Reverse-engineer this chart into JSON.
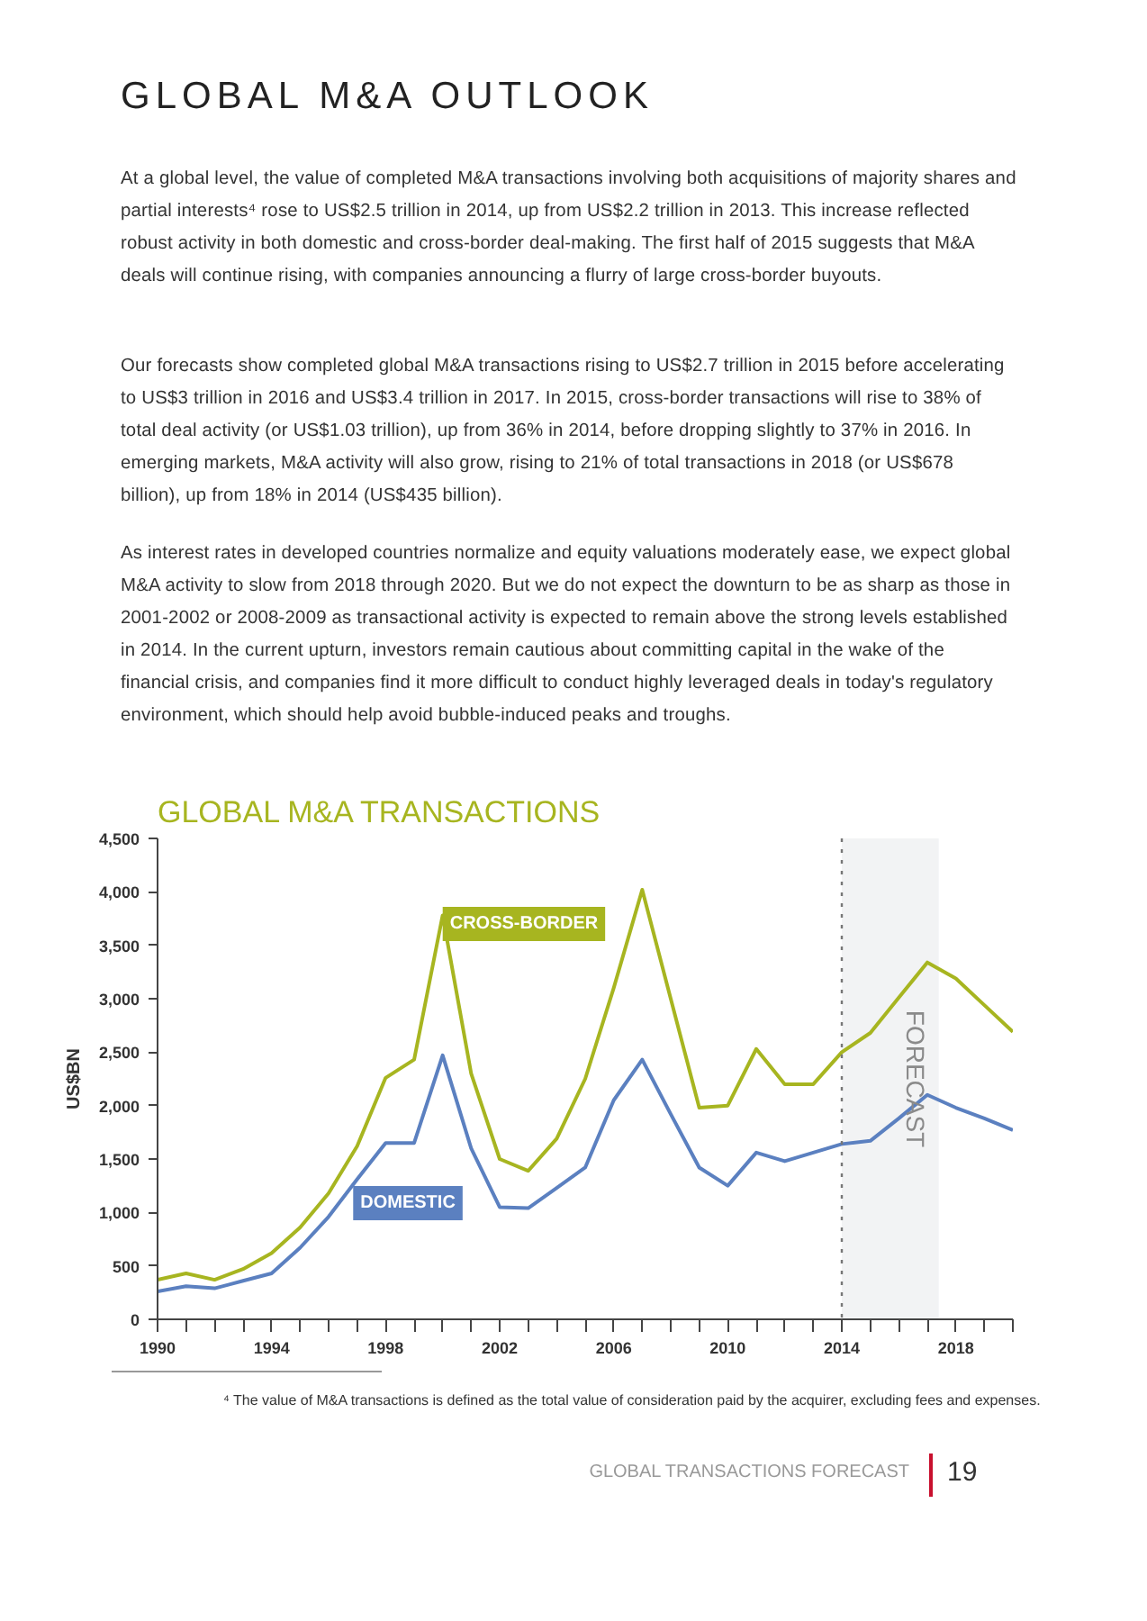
{
  "chart_data": {
    "type": "line",
    "title": "GLOBAL M&A TRANSACTIONS",
    "ylabel": "US$BN",
    "annotations": [
      "GLOBAL M&A OUTLOOK",
      "At a global level, the value of completed M&A transactions involving both acquisitions of majority shares and partial interests⁴ rose to US$2.5 trillion in 2014, up from US$2.2 trillion in 2013. This increase reflected robust activity in both domestic and cross-border deal-making. The first half of 2015 suggests that M&A deals will continue rising, with companies announcing a flurry of large cross-border buyouts.",
      "Our forecasts show completed global M&A transactions rising to US$2.7 trillion in 2015 before accelerating to US$3 trillion in 2016 and US$3.4 trillion in 2017. In 2015, cross-border transactions will rise to 38% of total deal activity (or US$1.03 trillion), up from 36% in 2014, before dropping slightly to 37% in 2016. In emerging markets, M&A activity will also grow, rising to 21% of total transactions in 2018 (or US$678 billion), up from 18% in 2014 (US$435 billion).",
      "As interest rates in developed countries normalize and equity valuations moderately ease, we expect global M&A activity to slow from 2018 through 2020. But we do not expect the downturn to be as sharp as those in 2001-2002 or 2008-2009 as transactional activity is expected to remain above the strong levels established in 2014. In the current upturn, investors remain cautious about committing capital in the wake of the financial crisis, and companies find it more difficult to conduct highly leveraged deals in today's regulatory environment, which should help avoid bubble-induced peaks and troughs.",
      "⁴ The value of M&A transactions is defined as the total value of consideration paid by the acquirer, excluding fees and expenses.",
      "GLOBAL TRANSACTIONS FORECAST",
      "19"
    ],
    "x": [
      1990,
      1991,
      1992,
      1993,
      1994,
      1995,
      1996,
      1997,
      1998,
      1999,
      2000,
      2001,
      2002,
      2003,
      2004,
      2005,
      2006,
      2007,
      2008,
      2009,
      2010,
      2011,
      2012,
      2013,
      2014,
      2015,
      2016,
      2017,
      2018,
      2019,
      2020
    ],
    "series": [
      {
        "name": "CROSS-BORDER",
        "color": "#a7b520",
        "values": [
          370,
          430,
          370,
          470,
          620,
          860,
          1180,
          1620,
          2260,
          2430,
          3780,
          2300,
          1500,
          1390,
          1690,
          2250,
          3100,
          4020,
          3000,
          1980,
          2000,
          2530,
          2200,
          2200,
          2500,
          2680,
          3010,
          3340,
          3190,
          2940,
          2690
        ]
      },
      {
        "name": "DOMESTIC",
        "color": "#5b80c0",
        "values": [
          260,
          310,
          290,
          360,
          430,
          670,
          960,
          1310,
          1650,
          1650,
          2470,
          1600,
          1050,
          1040,
          1230,
          1420,
          2050,
          2430,
          1920,
          1420,
          1250,
          1560,
          1480,
          1560,
          1640,
          1670,
          1880,
          2100,
          1980,
          1880,
          1770
        ]
      }
    ],
    "xlim": [
      1990,
      2020
    ],
    "xticks": [
      1990,
      {
        "value": 1991,
        "label": null
      },
      {
        "value": 1992,
        "label": null
      },
      {
        "value": 1993,
        "label": null
      },
      1994,
      {
        "value": 1995,
        "label": null
      },
      {
        "value": 1996,
        "label": null
      },
      {
        "value": 1997,
        "label": null
      },
      1998,
      {
        "value": 1999,
        "label": null
      },
      {
        "value": 2000,
        "label": null
      },
      {
        "value": 2001,
        "label": null
      },
      2002,
      {
        "value": 2003,
        "label": null
      },
      {
        "value": 2004,
        "label": null
      },
      {
        "value": 2005,
        "label": null
      },
      2006,
      {
        "value": 2007,
        "label": null
      },
      {
        "value": 2008,
        "label": null
      },
      {
        "value": 2009,
        "label": null
      },
      2010,
      {
        "value": 2011,
        "label": null
      },
      {
        "value": 2012,
        "label": null
      },
      {
        "value": 2013,
        "label": null
      },
      2014,
      {
        "value": 2015,
        "label": null
      },
      {
        "value": 2016,
        "label": null
      },
      {
        "value": 2017,
        "label": null
      },
      2018,
      {
        "value": 2019,
        "label": null
      },
      {
        "value": 2020,
        "label": null
      }
    ],
    "ylim": [
      0,
      4500
    ],
    "yticks": [
      0,
      500,
      {
        "value": 1000,
        "label": "1,000"
      },
      {
        "value": 1500,
        "label": "1,500"
      },
      {
        "value": 2000,
        "label": "2,000"
      },
      {
        "value": 2500,
        "label": "2,500"
      },
      {
        "value": 3000,
        "label": "3,000"
      },
      {
        "value": 3500,
        "label": "3,500"
      },
      {
        "value": 4000,
        "label": "4,000"
      },
      {
        "value": 4500,
        "label": "4,500"
      }
    ],
    "ref_lines": [
      {
        "axis": "x",
        "value": 2014,
        "color": "#777777",
        "line_style": "dotted"
      }
    ],
    "bands": [
      {
        "axis": "x",
        "from": 2014,
        "to": 2017.4,
        "label": "FORECAST",
        "color": "#f2f3f4"
      }
    ],
    "grid": false
  }
}
